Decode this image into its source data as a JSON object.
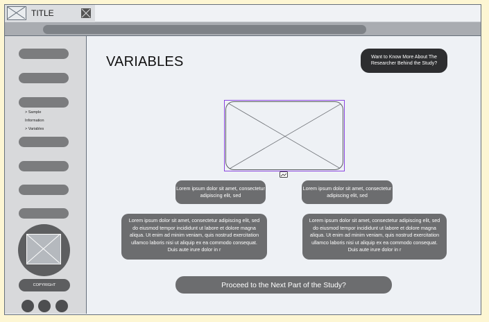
{
  "window": {
    "tab_title": "TITLE",
    "tab_icon": "image-placeholder-icon",
    "close_icon": "close-tab-icon"
  },
  "sidebar": {
    "menu_links": [
      "> Sample",
      "Information",
      "> Variables"
    ],
    "copyright": "COPYRIGHT",
    "avatar_icon": "image-placeholder-icon"
  },
  "main": {
    "title": "VARIABLES",
    "about_button": "Want to Know More About The Researcher Behind the Study?",
    "image_icon": "image-placeholder-icon",
    "caption_left": "Lorem ipsum dolor sit amet, consectetur adipiscing elit, sed",
    "caption_right": "Lorem ipsum dolor sit amet, consectetur adipiscing elit, sed",
    "paragraph_left": "Lorem ipsum dolor sit amet, consectetur adipiscing elit, sed do eiusmod tempor incididunt ut labore et dolore magna aliqua. Ut enim ad minim veniam, quis nostrud exercitation ullamco laboris nisi ut aliquip ex ea commodo consequat. Duis aute irure dolor in r",
    "paragraph_right": "Lorem ipsum dolor sit amet, consectetur adipiscing elit, sed do eiusmod tempor incididunt ut labore et dolore magna aliqua. Ut enim ad minim veniam, quis nostrud exercitation ullamco laboris nisi ut aliquip ex ea commodo consequat. Duis aute irure dolor in r",
    "proceed_button": "Proceed to the Next Part of the Study?"
  },
  "colors": {
    "selection_outline": "#8a44e0",
    "dark_button": "#2d2e30",
    "gray_block": "#6c6d6f",
    "background": "#fdf6d3"
  }
}
